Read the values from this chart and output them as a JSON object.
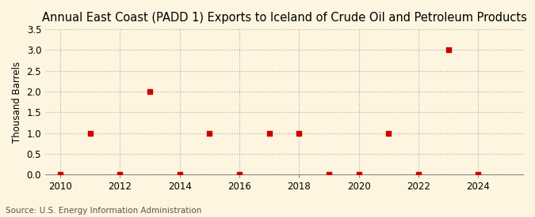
{
  "title": "Annual East Coast (PADD 1) Exports to Iceland of Crude Oil and Petroleum Products",
  "ylabel": "Thousand Barrels",
  "source": "Source: U.S. Energy Information Administration",
  "background_color": "#fdf5e0",
  "plot_bg_color": "#ffffff",
  "years": [
    2010,
    2011,
    2012,
    2013,
    2014,
    2015,
    2016,
    2017,
    2018,
    2019,
    2020,
    2021,
    2022,
    2023,
    2024
  ],
  "values": [
    0,
    1.0,
    0,
    2.0,
    0,
    1.0,
    0,
    1.0,
    1.0,
    0,
    0,
    1.0,
    0,
    3.0,
    0
  ],
  "marker_color": "#cc0000",
  "marker_size": 4,
  "xlim": [
    2009.5,
    2025.5
  ],
  "ylim": [
    0,
    3.5
  ],
  "yticks": [
    0.0,
    0.5,
    1.0,
    1.5,
    2.0,
    2.5,
    3.0,
    3.5
  ],
  "xticks": [
    2010,
    2012,
    2014,
    2016,
    2018,
    2020,
    2022,
    2024
  ],
  "title_fontsize": 10.5,
  "label_fontsize": 8.5,
  "tick_fontsize": 8.5,
  "source_fontsize": 7.5
}
